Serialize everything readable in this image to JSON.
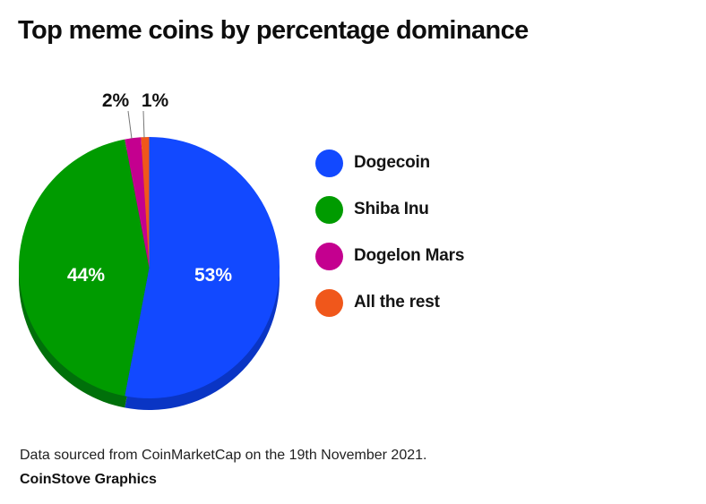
{
  "title": "Top meme coins by percentage dominance",
  "footnote": "Data sourced from CoinMarketCap on the 19th November 2021.",
  "credit": "CoinStove Graphics",
  "chart_data": {
    "type": "pie",
    "title": "Top meme coins by percentage dominance",
    "categories": [
      "Dogecoin",
      "Shiba Inu",
      "Dogelon Mars",
      "All the rest"
    ],
    "values": [
      53,
      44,
      2,
      1
    ],
    "labels": [
      "53%",
      "44%",
      "2%",
      "1%"
    ],
    "colors": [
      "#1249ff",
      "#009b00",
      "#c4008f",
      "#f0571b"
    ],
    "shade_colors": [
      "#0a35c4",
      "#00700a",
      "#8c0066",
      "#b03d10"
    ],
    "legend_position": "right",
    "start_angle_deg": 0,
    "direction": "clockwise"
  },
  "legend": {
    "items": [
      {
        "label": "Dogecoin",
        "color": "#1249ff"
      },
      {
        "label": "Shiba Inu",
        "color": "#009b00"
      },
      {
        "label": "Dogelon Mars",
        "color": "#c4008f"
      },
      {
        "label": "All the rest",
        "color": "#f0571b"
      }
    ]
  }
}
